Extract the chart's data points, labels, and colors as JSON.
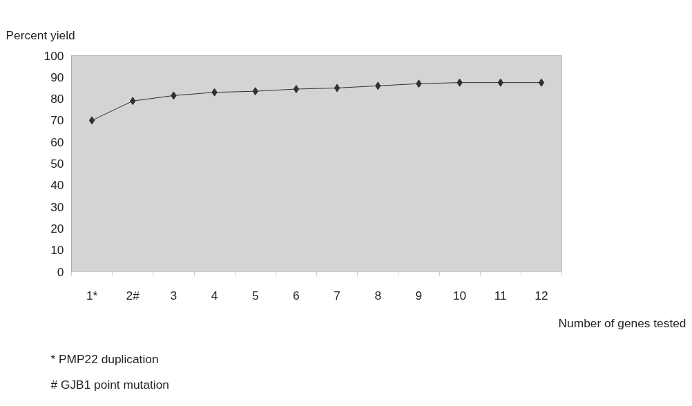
{
  "chart_data": {
    "type": "line",
    "ylabel": "Percent yield",
    "xlabel": "Number of genes tested",
    "categories": [
      "1*",
      "2#",
      "3",
      "4",
      "5",
      "6",
      "7",
      "8",
      "9",
      "10",
      "11",
      "12"
    ],
    "series": [
      {
        "color": "#303030",
        "values": [
          70,
          79,
          81.5,
          83,
          83.5,
          84.5,
          85,
          86,
          87,
          87.5,
          87.5,
          87.5
        ]
      }
    ],
    "ylim": [
      0,
      100
    ],
    "yticks": [
      0,
      10,
      20,
      30,
      40,
      50,
      60,
      70,
      80,
      90,
      100
    ],
    "marker": "diamond",
    "line_style": "solid",
    "grid": false,
    "annotations": [
      "* PMP22 duplication",
      "# GJB1 point mutation"
    ]
  }
}
